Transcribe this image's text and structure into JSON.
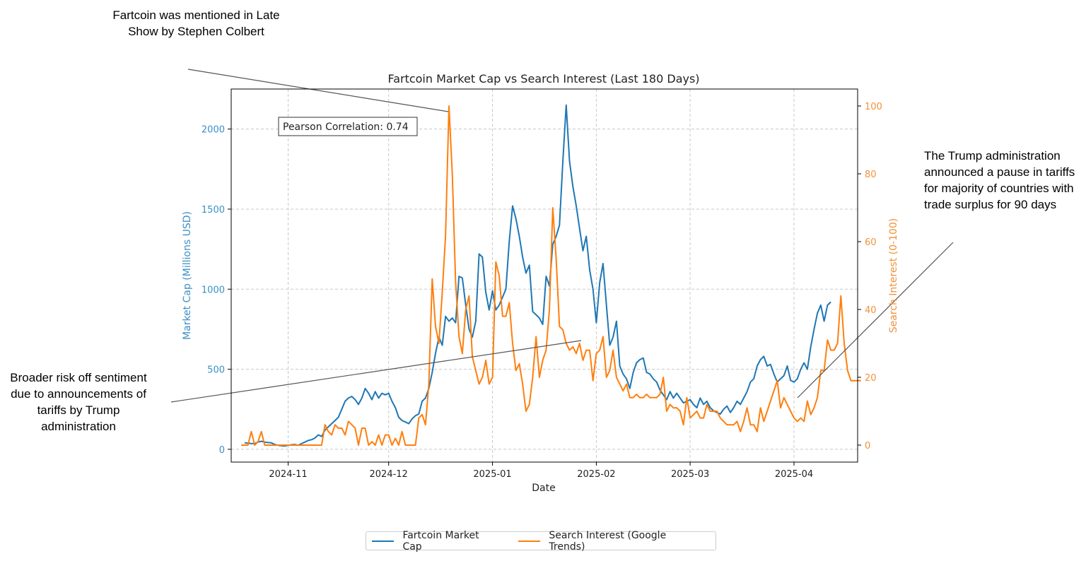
{
  "annotations": {
    "top": "Fartcoin was mentioned in Late Show by Stephen Colbert",
    "left": "Broader risk off sentiment due to announcements of tariffs by Trump administration",
    "right": "The Trump administration announced a pause in tariffs for majority of countries with trade surplus for 90 days"
  },
  "legend": {
    "series1": "Fartcoin Market Cap",
    "series2": "Search Interest (Google Trends)"
  },
  "correlation_label": "Pearson Correlation: 0.74",
  "chart_data": {
    "type": "line",
    "title": "Fartcoin Market Cap vs Search Interest (Last 180 Days)",
    "xlabel": "Date",
    "ylabel_left": "Market Cap (Millions USD)",
    "ylabel_right": "Search Interest (0-100)",
    "x_ticks": [
      "2024-11",
      "2024-12",
      "2025-01",
      "2025-02",
      "2025-03",
      "2025-04"
    ],
    "y_left_ticks": [
      0,
      500,
      1000,
      1500,
      2000
    ],
    "y_right_ticks": [
      0,
      20,
      40,
      60,
      80,
      100
    ],
    "ylim_left": [
      -80,
      2250
    ],
    "ylim_right": [
      -5,
      105
    ],
    "grid": true,
    "colors": {
      "market_cap": "#1f77b4",
      "search": "#ff7f0e",
      "axis_left_label": "#3b8fc4",
      "axis_right_label": "#f0913a"
    },
    "series": [
      {
        "name": "Fartcoin Market Cap",
        "axis": "left",
        "start": "2024-10-19",
        "values": [
          40,
          38,
          36,
          35,
          45,
          50,
          45,
          42,
          40,
          30,
          25,
          22,
          20,
          25,
          28,
          30,
          25,
          35,
          45,
          55,
          60,
          70,
          90,
          80,
          120,
          140,
          160,
          180,
          200,
          250,
          300,
          320,
          330,
          310,
          280,
          320,
          380,
          350,
          310,
          360,
          320,
          350,
          340,
          350,
          300,
          260,
          200,
          180,
          170,
          160,
          190,
          210,
          220,
          300,
          320,
          380,
          480,
          600,
          700,
          650,
          830,
          800,
          820,
          790,
          1080,
          1070,
          900,
          750,
          700,
          800,
          1220,
          1200,
          980,
          870,
          990,
          870,
          900,
          950,
          1000,
          1300,
          1520,
          1440,
          1330,
          1200,
          1100,
          1150,
          860,
          840,
          820,
          780,
          1080,
          1020,
          1280,
          1330,
          1400,
          1800,
          2150,
          1800,
          1640,
          1520,
          1380,
          1240,
          1330,
          1120,
          1000,
          790,
          1040,
          1160,
          900,
          650,
          700,
          800,
          520,
          470,
          440,
          380,
          480,
          540,
          560,
          570,
          480,
          470,
          440,
          420,
          370,
          340,
          310,
          360,
          320,
          350,
          320,
          290,
          300,
          310,
          280,
          260,
          320,
          280,
          300,
          260,
          240,
          230,
          220,
          250,
          270,
          230,
          260,
          300,
          280,
          320,
          360,
          420,
          440,
          520,
          560,
          580,
          520,
          530,
          470,
          420,
          440,
          460,
          520,
          430,
          420,
          440,
          500,
          540,
          500,
          640,
          750,
          850,
          900,
          800,
          900,
          920
        ]
      },
      {
        "name": "Search Interest (Google Trends)",
        "axis": "right",
        "start": "2024-10-18",
        "values": [
          0,
          0,
          0,
          4,
          0,
          1,
          4,
          0,
          0,
          0,
          0,
          0,
          0,
          0,
          0,
          0,
          0,
          0,
          0,
          0,
          0,
          0,
          0,
          0,
          0,
          6,
          4,
          3,
          6,
          5,
          5,
          3,
          7,
          6,
          5,
          0,
          5,
          5,
          0,
          1,
          0,
          3,
          0,
          3,
          3,
          0,
          2,
          0,
          4,
          0,
          0,
          0,
          0,
          8,
          9,
          6,
          18,
          49,
          35,
          30,
          45,
          62,
          100,
          80,
          48,
          32,
          27,
          40,
          44,
          26,
          22,
          18,
          20,
          25,
          18,
          20,
          54,
          50,
          38,
          38,
          42,
          30,
          22,
          24,
          18,
          10,
          12,
          20,
          32,
          20,
          25,
          28,
          40,
          70,
          55,
          35,
          34,
          30,
          28,
          29,
          27,
          30,
          25,
          28,
          28,
          19,
          27,
          28,
          32,
          20,
          22,
          28,
          20,
          18,
          16,
          18,
          14,
          14,
          15,
          14,
          14,
          15,
          14,
          14,
          14,
          15,
          20,
          10,
          12,
          11,
          11,
          10,
          6,
          14,
          8,
          9,
          10,
          8,
          8,
          12,
          10,
          10,
          10,
          8,
          7,
          6,
          6,
          6,
          7,
          4,
          7,
          11,
          6,
          6,
          4,
          11,
          7,
          10,
          13,
          16,
          19,
          11,
          14,
          12,
          10,
          8,
          7,
          8,
          7,
          13,
          9,
          11,
          14,
          22,
          22,
          31,
          28,
          28,
          30,
          44,
          30,
          22,
          19,
          19,
          19,
          19
        ]
      }
    ]
  }
}
